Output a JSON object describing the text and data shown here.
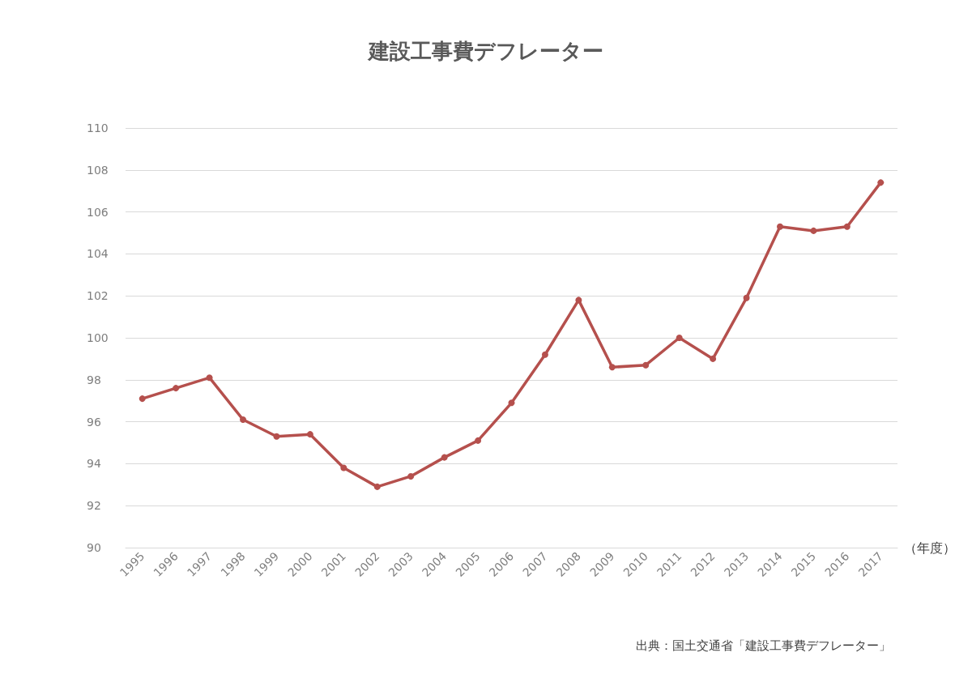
{
  "chart_data": {
    "type": "line",
    "title": "建設工事費デフレーター",
    "xlabel": "（年度）",
    "categories": [
      "1995",
      "1996",
      "1997",
      "1998",
      "1999",
      "2000",
      "2001",
      "2002",
      "2003",
      "2004",
      "2005",
      "2006",
      "2007",
      "2008",
      "2009",
      "2010",
      "2011",
      "2012",
      "2013",
      "2014",
      "2015",
      "2016",
      "2017"
    ],
    "series": [
      {
        "color": "#b5504d",
        "values": [
          97.1,
          97.6,
          98.1,
          96.1,
          95.3,
          95.4,
          93.8,
          92.9,
          93.4,
          94.3,
          95.1,
          96.9,
          99.2,
          101.8,
          98.6,
          98.7,
          100.0,
          99.0,
          101.9,
          105.3,
          105.1,
          105.3,
          107.4
        ]
      }
    ],
    "ylim": [
      90,
      110
    ],
    "yticks": [
      90,
      92,
      94,
      96,
      98,
      100,
      102,
      104,
      106,
      108,
      110
    ],
    "grid": "y",
    "marker": "circle",
    "line_style": "solid",
    "annotations": [
      "出典：国土交通省「建設工事費デフレーター」"
    ]
  }
}
